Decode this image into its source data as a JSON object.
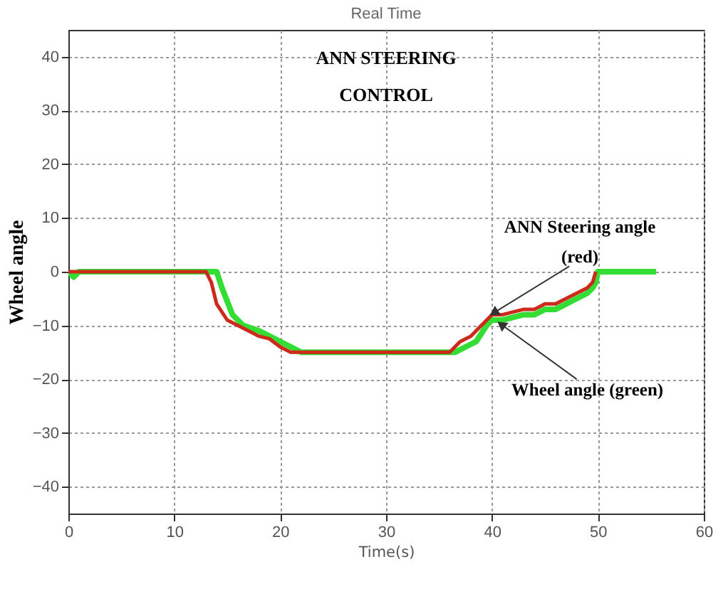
{
  "chart_data": {
    "type": "line",
    "title": "Real Time",
    "xlabel": "Time(s)",
    "ylabel": "Wheel angle",
    "xlim": [
      0,
      60
    ],
    "xticks": [
      0,
      10,
      20,
      30,
      40,
      50,
      60
    ],
    "ylim": [
      -45,
      45
    ],
    "yticks": [
      -40,
      -30,
      -20,
      -10,
      0,
      10,
      20,
      30,
      40
    ],
    "grid": true,
    "legend": false,
    "series": [
      {
        "color": "#33dd33",
        "x": [
          0,
          0.5,
          1,
          13,
          14,
          14.5,
          15.5,
          16.5,
          18,
          19,
          20,
          21,
          22,
          36,
          36.5,
          37.5,
          38.5,
          39.5,
          40,
          41,
          42,
          43,
          44,
          45,
          46,
          47,
          48,
          49,
          49.5,
          49.8,
          50,
          55.5
        ],
        "values": [
          0,
          -1,
          0,
          0,
          0,
          -3,
          -8,
          -10,
          -11,
          -12,
          -13,
          -14,
          -15,
          -15,
          -15,
          -14,
          -13,
          -10,
          -9,
          -9,
          -8.5,
          -8,
          -8,
          -7,
          -7,
          -6,
          -5,
          -4,
          -3,
          -2,
          0,
          0
        ]
      },
      {
        "color": "#cc2a1a",
        "x": [
          0,
          13,
          13.5,
          14,
          15,
          16,
          17,
          18,
          19,
          20,
          21,
          36,
          36.5,
          37,
          38,
          39,
          39.5,
          40,
          41,
          42,
          43,
          44,
          45,
          46,
          47,
          48,
          49,
          49.5,
          49.8
        ],
        "values": [
          0,
          0,
          -2,
          -6,
          -9,
          -10,
          -11,
          -12,
          -12.5,
          -14,
          -15,
          -15,
          -14,
          -13,
          -12,
          -10,
          -9,
          -8,
          -8,
          -7.5,
          -7,
          -7,
          -6,
          -6,
          -5,
          -4,
          -3,
          -2,
          0
        ]
      }
    ],
    "annotations": [
      "ANN STEERING\nCONTROL",
      {
        "text": "ANN Steering angle\n(red)",
        "x": 40.3,
        "y": -7.5
      },
      {
        "text": "Wheel angle (green)",
        "x": 41,
        "y": -10
      }
    ]
  }
}
